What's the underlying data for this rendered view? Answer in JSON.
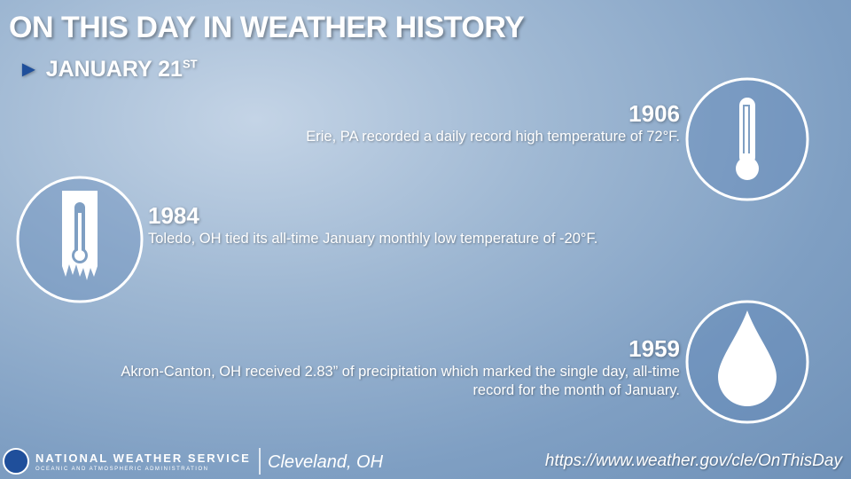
{
  "header": {
    "title": "ON THIS DAY IN WEATHER HISTORY",
    "date": "JANUARY 21",
    "date_suffix": "ST"
  },
  "events": [
    {
      "year": "1906",
      "text": "Erie, PA recorded a daily record high temperature of 72°F."
    },
    {
      "year": "1984",
      "text": "Toledo, OH tied its all-time January monthly low temperature of -20°F."
    },
    {
      "year": "1959",
      "text": "Akron-Canton, OH received 2.83” of precipitation which marked the single day, all-time record for the month of January."
    }
  ],
  "footer": {
    "agency": "NATIONAL WEATHER SERVICE",
    "subagency": "OCEANIC AND ATMOSPHERIC ADMINISTRATION",
    "office": "Cleveland, OH",
    "url": "https://www.weather.gov/cle/OnThisDay"
  }
}
